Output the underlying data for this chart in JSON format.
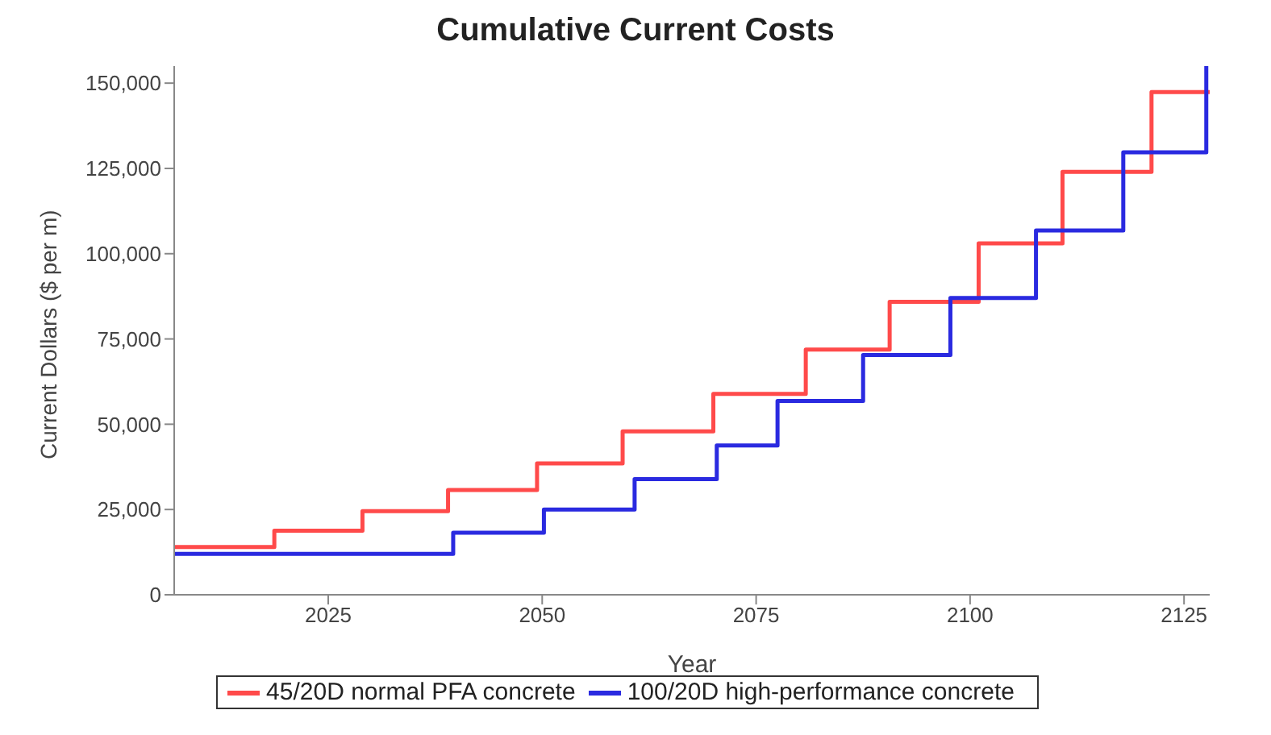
{
  "chart_data": {
    "type": "step",
    "title": "Cumulative Current Costs",
    "xlabel": "Year",
    "ylabel": "Current Dollars ($ per m)",
    "xlim": [
      2007,
      2128
    ],
    "xticks": [
      2025,
      2050,
      2075,
      2100,
      2125
    ],
    "ylim": [
      0,
      155000
    ],
    "yticks": [
      0,
      {
        "value": 25000,
        "label": "25,000"
      },
      {
        "value": 50000,
        "label": "50,000"
      },
      {
        "value": 75000,
        "label": "75,000"
      },
      {
        "value": 100000,
        "label": "100,000"
      },
      {
        "value": 125000,
        "label": "125,000"
      },
      {
        "value": 150000,
        "label": "150,000"
      }
    ],
    "grid": false,
    "legend": "bottom",
    "series": [
      {
        "name": "45/20D normal PFA concrete",
        "color": "#ff4a4a",
        "x": [
          2007,
          2018.7,
          2029,
          2039,
          2049.4,
          2059.4,
          2070,
          2080.8,
          2090.6,
          2101,
          2110.8,
          2121.2,
          2128
        ],
        "values": [
          14000,
          18800,
          24500,
          30700,
          38500,
          47900,
          58900,
          71900,
          85900,
          103000,
          124000,
          147400,
          147400
        ]
      },
      {
        "name": "100/20D high-performance concrete",
        "color": "#2a2ae0",
        "x": [
          2007,
          2039.6,
          2050.2,
          2060.8,
          2070.4,
          2077.5,
          2087.5,
          2097.7,
          2107.7,
          2117.9,
          2127.6
        ],
        "values": [
          12000,
          18200,
          25000,
          33900,
          43800,
          56800,
          70300,
          87000,
          106800,
          129700,
          155000
        ]
      }
    ]
  }
}
